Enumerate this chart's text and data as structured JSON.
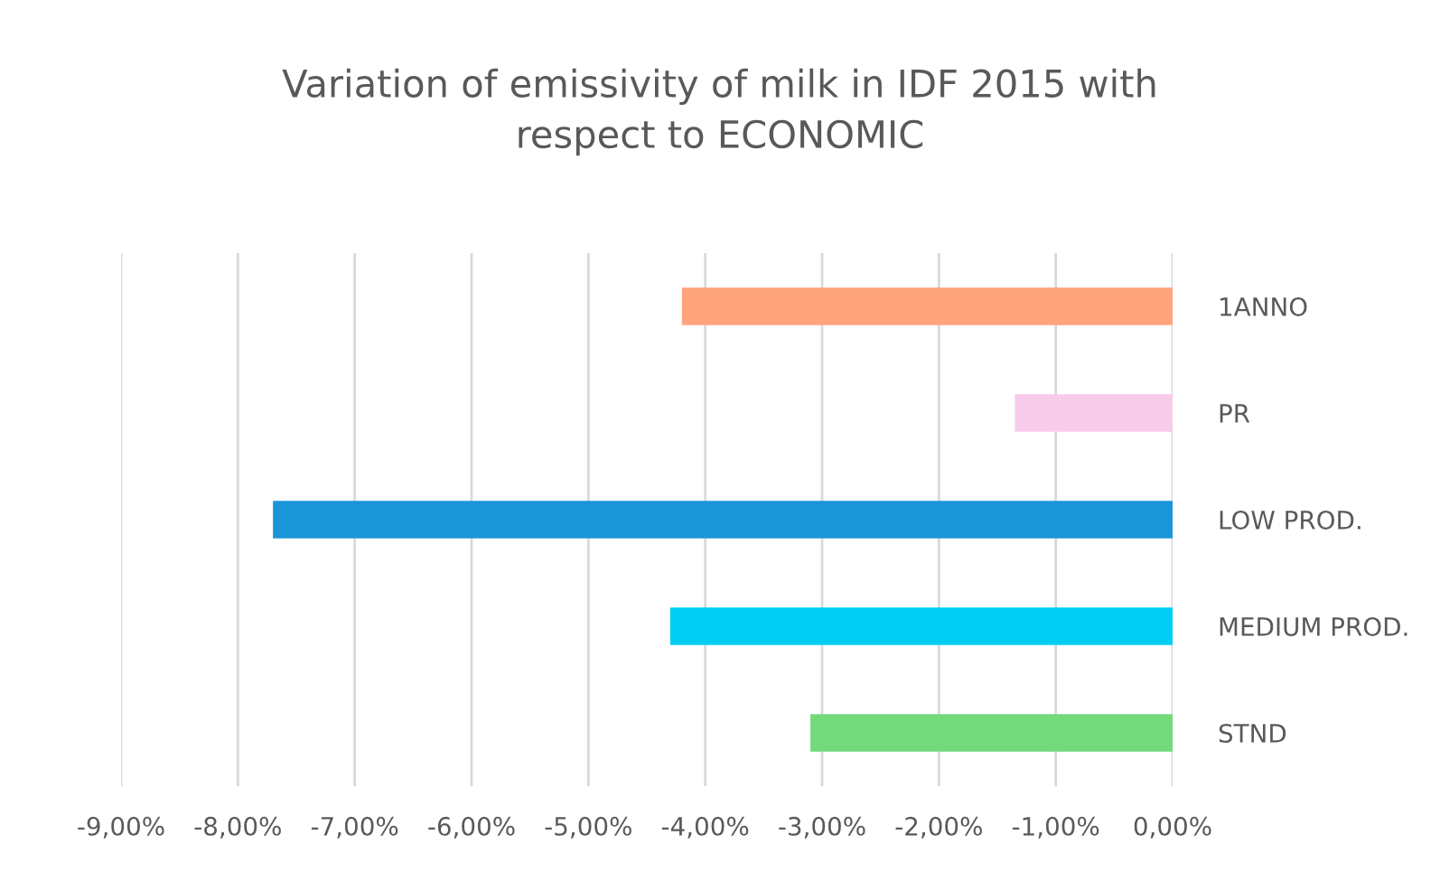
{
  "chart_data": {
    "type": "bar",
    "orientation": "horizontal",
    "title": "Variation of emissivity of milk in IDF 2015 with\nrespect to ECONOMIC",
    "categories": [
      "1ANNO",
      "PR",
      "LOW PROD.",
      "MEDIUM PROD.",
      "STND"
    ],
    "values": [
      -4.2,
      -1.35,
      -7.7,
      -4.3,
      -3.1
    ],
    "colors": [
      "#ffa47c",
      "#f7cbe9",
      "#1a96d8",
      "#00cef5",
      "#72da7a"
    ],
    "xlim": [
      -9,
      0
    ],
    "xticks": [
      {
        "value": -9,
        "label": "-9,00%"
      },
      {
        "value": -8,
        "label": "-8,00%"
      },
      {
        "value": -7,
        "label": "-7,00%"
      },
      {
        "value": -6,
        "label": "-6,00%"
      },
      {
        "value": -5,
        "label": "-5,00%"
      },
      {
        "value": -4,
        "label": "-4,00%"
      },
      {
        "value": -3,
        "label": "-3,00%"
      },
      {
        "value": -2,
        "label": "-2,00%"
      },
      {
        "value": -1,
        "label": "-1,00%"
      },
      {
        "value": 0,
        "label": "0,00%"
      }
    ],
    "grid": "x",
    "legend": false
  }
}
